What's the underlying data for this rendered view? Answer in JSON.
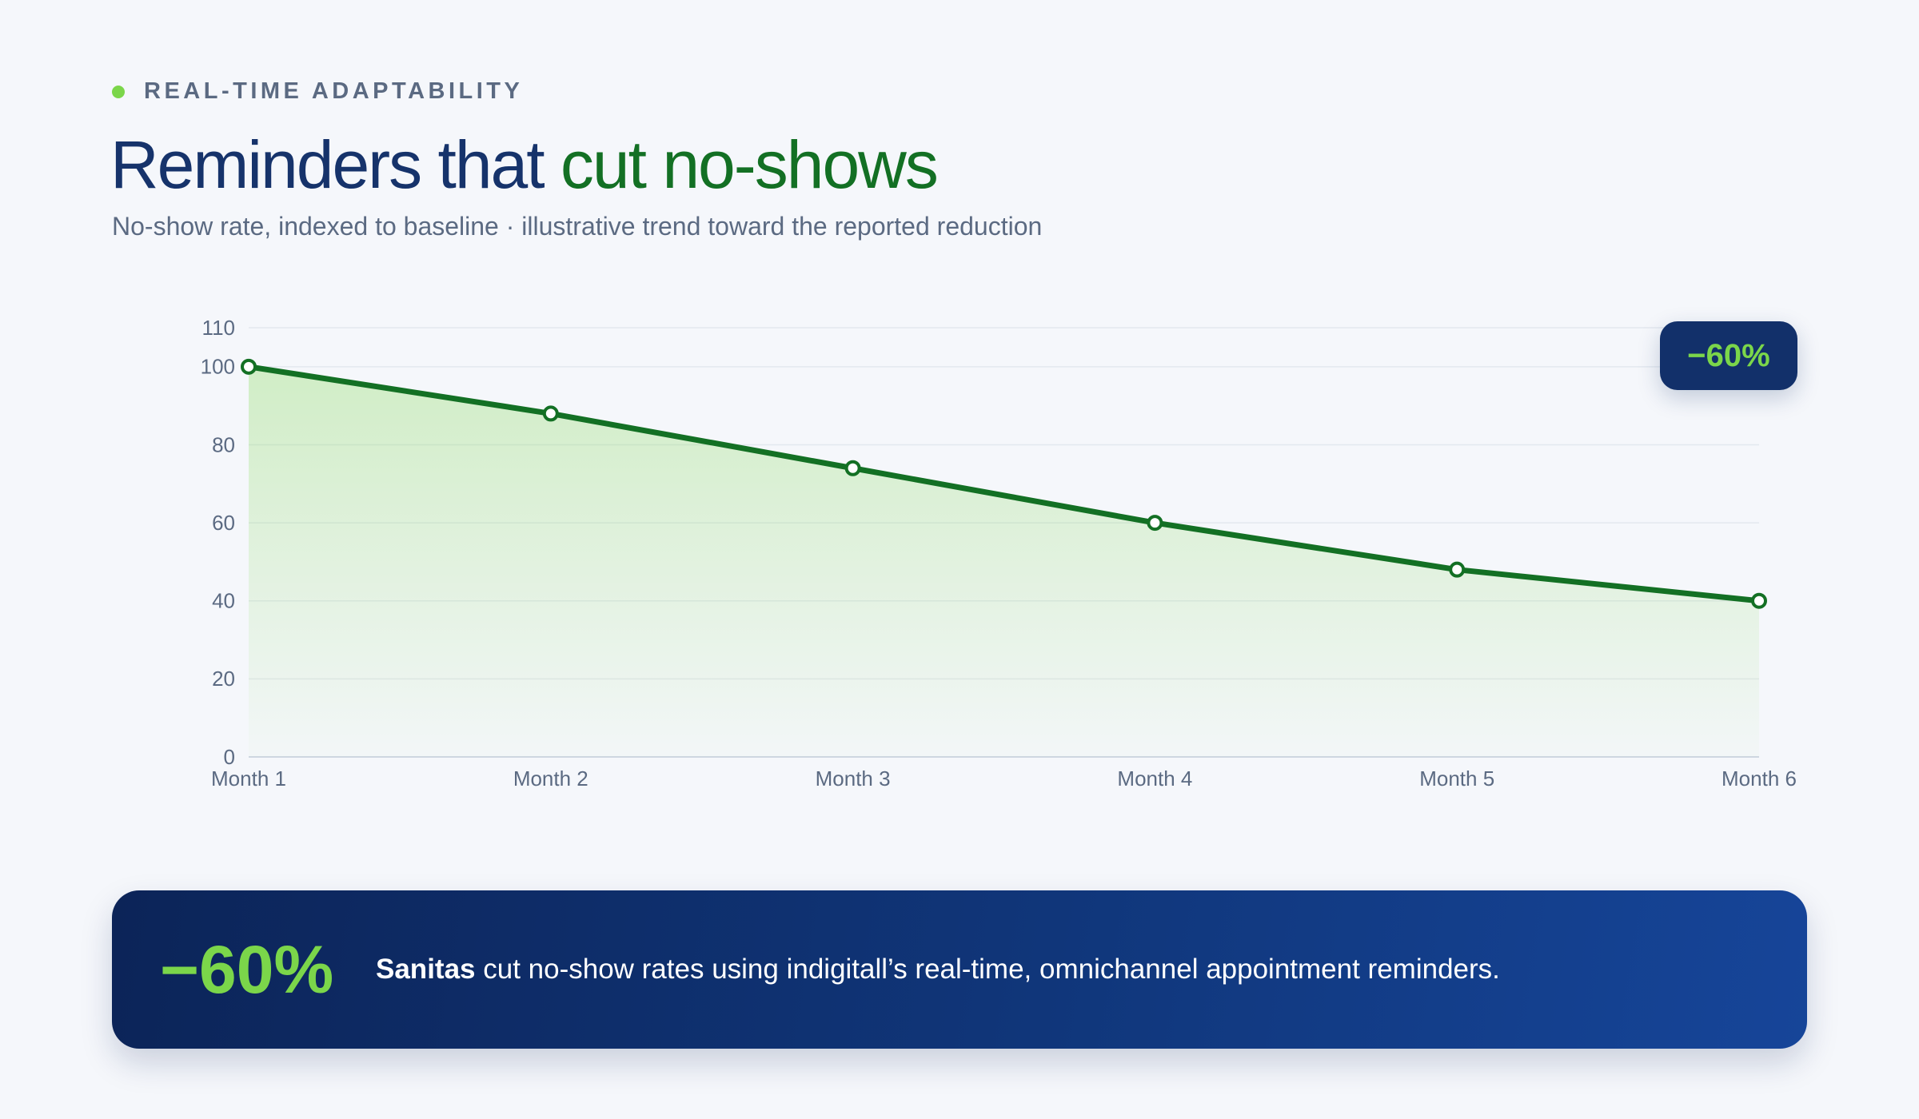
{
  "eyebrow": "REAL-TIME ADAPTABILITY",
  "title": {
    "part1": "Reminders that ",
    "part2": "cut no-shows"
  },
  "subtitle": "No-show rate, indexed to baseline · illustrative trend toward the reported reduction",
  "badge": "−60%",
  "callout": {
    "value": "−60%",
    "brand": "Sanitas",
    "text": " cut no-show rates using indigitall’s real-time, omnichannel appointment reminders."
  },
  "colors": {
    "line": "#137024",
    "area": "#7bd64a",
    "navy": "#12306a",
    "accent": "#7bd64a"
  },
  "chart_data": {
    "type": "area",
    "categories": [
      "Month 1",
      "Month 2",
      "Month 3",
      "Month 4",
      "Month 5",
      "Month 6"
    ],
    "series": [
      {
        "values": [
          100,
          88,
          74,
          60,
          48,
          40
        ]
      }
    ],
    "ylim": [
      0,
      110
    ],
    "yticks": [
      0,
      20,
      40,
      60,
      80,
      100,
      110
    ],
    "grid": true,
    "annotation": "−60%"
  }
}
